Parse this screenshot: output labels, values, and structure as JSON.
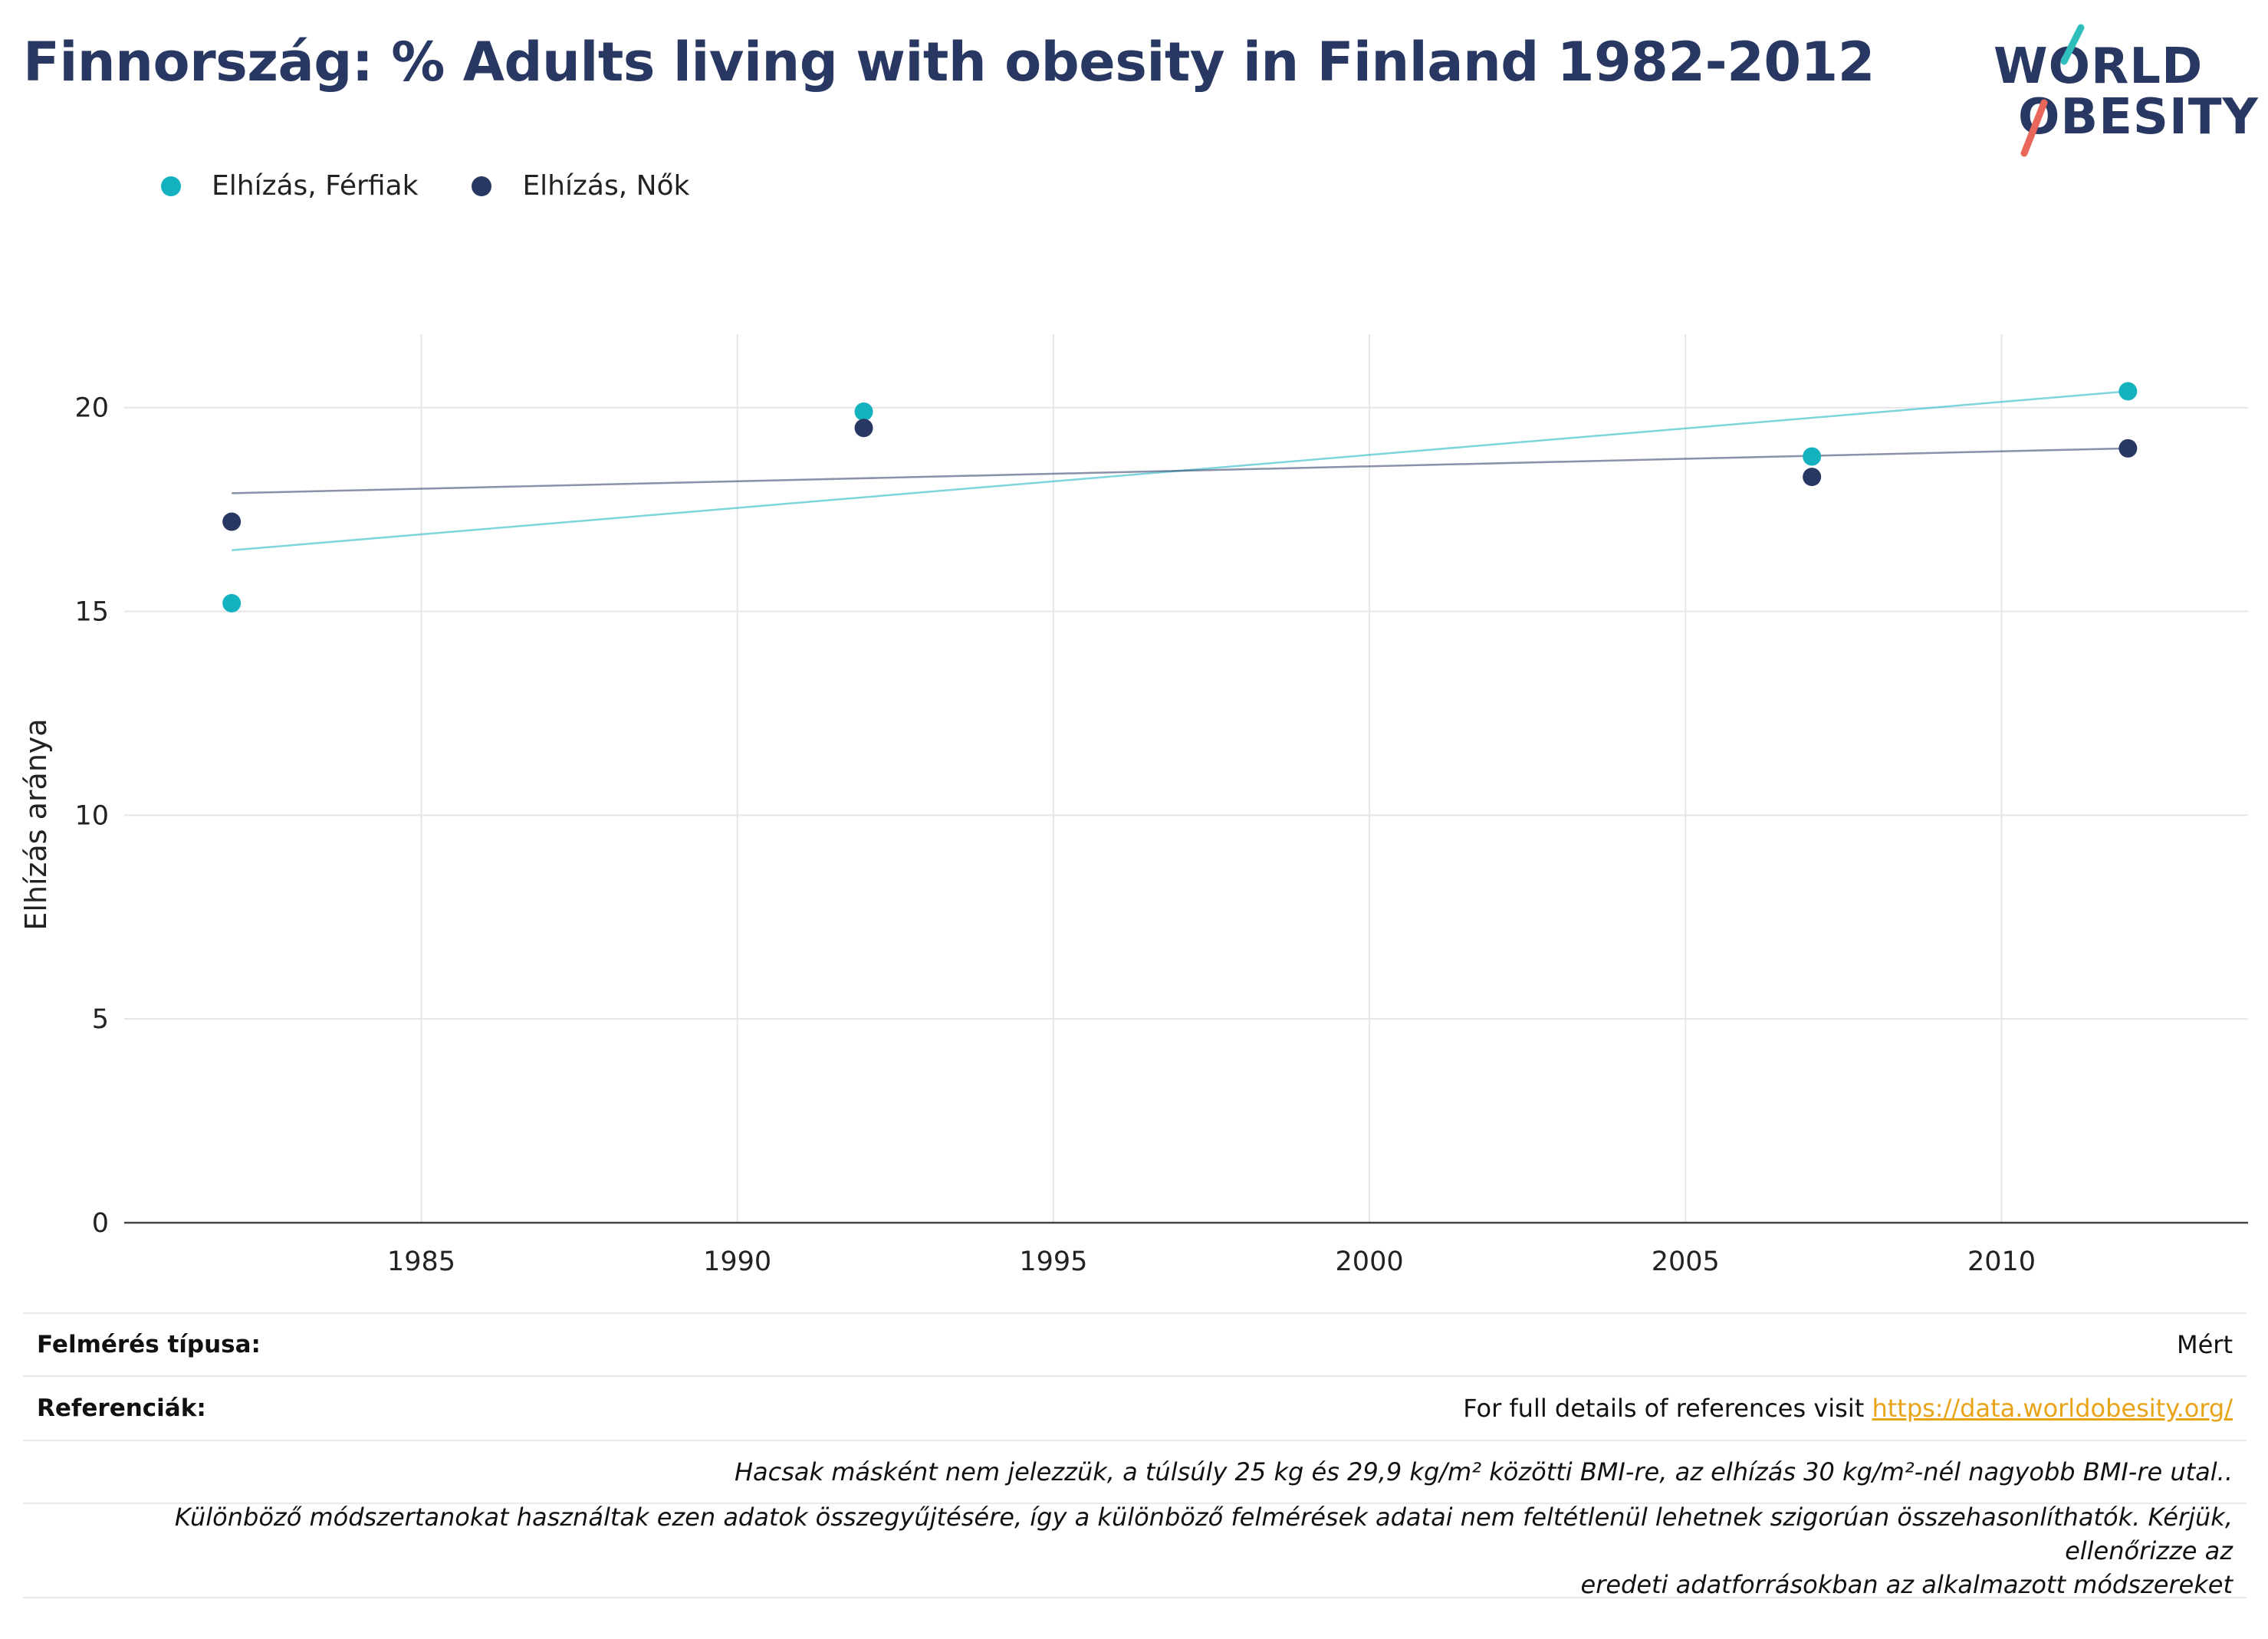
{
  "title": "Finnország: % Adults living with obesity in Finland 1982-2012",
  "logo": {
    "line1": "WORLD",
    "line2": "OBESITY",
    "accent_teal": "#2ebfbd",
    "accent_red": "#e8665a"
  },
  "legend": [
    {
      "label": "Elhízás, Férfiak",
      "color": "#14b2bf"
    },
    {
      "label": "Elhízás, Nők",
      "color": "#283862"
    }
  ],
  "chart_data": {
    "type": "scatter",
    "ylabel": "Elhízás aránya",
    "xlabel": "",
    "xlim": [
      1980.3,
      2013.9
    ],
    "ylim": [
      0,
      21.8
    ],
    "x_ticks": [
      1985,
      1990,
      1995,
      2000,
      2005,
      2010
    ],
    "y_ticks": [
      0,
      5,
      10,
      15,
      20
    ],
    "grid": true,
    "legend_position": "top-left",
    "series": [
      {
        "name": "Elhízás, Férfiak",
        "color": "#14b2bf",
        "points": [
          [
            1982,
            15.2
          ],
          [
            1992,
            19.9
          ],
          [
            2007,
            18.8
          ],
          [
            2012,
            20.4
          ]
        ],
        "trend": [
          [
            1982,
            16.5
          ],
          [
            2012,
            20.4
          ]
        ]
      },
      {
        "name": "Elhízás, Nők",
        "color": "#283862",
        "points": [
          [
            1982,
            17.2
          ],
          [
            1992,
            19.5
          ],
          [
            2007,
            18.3
          ],
          [
            2012,
            19.0
          ]
        ],
        "trend": [
          [
            1982,
            17.9
          ],
          [
            2012,
            19.0
          ]
        ]
      }
    ]
  },
  "info": {
    "survey_type_label": "Felmérés típusa:",
    "survey_type_value": "Mért",
    "references_label": "Referenciák:",
    "references_text": "For full details of references visit ",
    "references_link": "https://data.worldobesity.org/",
    "note1": "Hacsak másként nem jelezzük, a túlsúly 25 kg és 29,9 kg/m² közötti BMI-re, az elhízás 30 kg/m²-nél nagyobb BMI-re utal..",
    "note2_line1": "Különböző módszertanokat használtak ezen adatok összegyűjtésére, így a különböző felmérések adatai nem feltétlenül lehetnek szigorúan összehasonlíthatók. Kérjük, ellenőrizze az",
    "note2_line2": "eredeti adatforrásokban az alkalmazott módszereket"
  }
}
